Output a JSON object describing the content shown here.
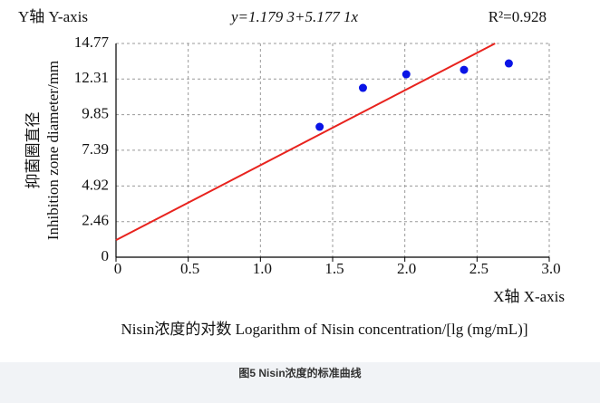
{
  "chart_data": {
    "type": "scatter",
    "y_axis_title": "Y轴 Y-axis",
    "equation": "y=1.179 3+5.177 1x",
    "r_squared": "R²=0.928",
    "y_label_cn": "抑菌圈直径",
    "y_label_en": "Inhibition zone diameter/mm",
    "x_axis_title": "X轴 X-axis",
    "x_label": "Nisin浓度的对数  Logarithm of Nisin concentration/[lg (mg/mL)]",
    "caption": "图5 Nisin浓度的标准曲线",
    "xlim": [
      0,
      3
    ],
    "xticks": [
      0,
      0.5,
      {
        "value": 1,
        "label": "1.0"
      },
      1.5,
      {
        "value": 2,
        "label": "2.0"
      },
      2.5,
      {
        "value": 3,
        "label": "3.0"
      }
    ],
    "ylim": [
      0,
      14.77
    ],
    "yticks": [
      0,
      2.46,
      4.92,
      7.39,
      9.85,
      12.31,
      14.77
    ],
    "grid": true,
    "series": [
      {
        "kind": "points",
        "color": "#0a14e6",
        "x": [
          1.41,
          1.71,
          2.01,
          2.41,
          2.72
        ],
        "values": [
          9.01,
          11.7,
          12.64,
          12.95,
          13.39
        ]
      },
      {
        "kind": "line",
        "color": "#e8231e",
        "x": [
          0,
          2.625
        ],
        "values": [
          1.18,
          14.77
        ]
      }
    ]
  }
}
